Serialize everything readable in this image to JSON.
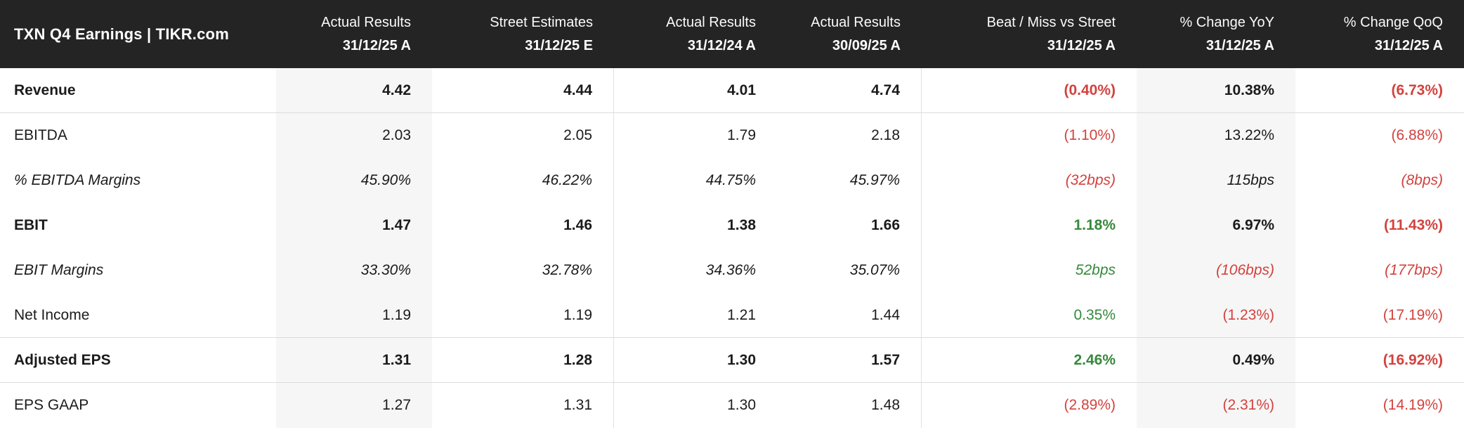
{
  "title": "TXN Q4 Earnings | TIKR.com",
  "colors": {
    "header_bg": "#242424",
    "header_text": "#ffffff",
    "body_text": "#1b1b1b",
    "negative_red": "#d2423e",
    "positive_green": "#36893c",
    "shaded_column_bg": "#f6f6f6",
    "separator": "#dcdcdc"
  },
  "chart_data": {
    "type": "table",
    "title": "TXN Q4 Earnings | TIKR.com",
    "columns": [
      {
        "label": "Actual Results",
        "date": "31/12/25 A"
      },
      {
        "label": "Street Estimates",
        "date": "31/12/25 E"
      },
      {
        "label": "Actual Results",
        "date": "31/12/24 A"
      },
      {
        "label": "Actual Results",
        "date": "30/09/25 A"
      },
      {
        "label": "Beat / Miss vs Street",
        "date": "31/12/25 A"
      },
      {
        "label": "% Change YoY",
        "date": "31/12/25 A"
      },
      {
        "label": "% Change QoQ",
        "date": "31/12/25 A"
      }
    ],
    "rows": [
      {
        "label": "Revenue",
        "style": "bold",
        "separator_below": true,
        "values": [
          {
            "text": "4.42",
            "color": "black"
          },
          {
            "text": "4.44",
            "color": "black"
          },
          {
            "text": "4.01",
            "color": "black"
          },
          {
            "text": "4.74",
            "color": "black"
          },
          {
            "text": "(0.40%)",
            "color": "red"
          },
          {
            "text": "10.38%",
            "color": "black"
          },
          {
            "text": "(6.73%)",
            "color": "red"
          }
        ]
      },
      {
        "label": "EBITDA",
        "style": "normal",
        "separator_below": false,
        "values": [
          {
            "text": "2.03",
            "color": "black"
          },
          {
            "text": "2.05",
            "color": "black"
          },
          {
            "text": "1.79",
            "color": "black"
          },
          {
            "text": "2.18",
            "color": "black"
          },
          {
            "text": "(1.10%)",
            "color": "red"
          },
          {
            "text": "13.22%",
            "color": "black"
          },
          {
            "text": "(6.88%)",
            "color": "red"
          }
        ]
      },
      {
        "label": "% EBITDA Margins",
        "style": "italic",
        "separator_below": false,
        "values": [
          {
            "text": "45.90%",
            "color": "black"
          },
          {
            "text": "46.22%",
            "color": "black"
          },
          {
            "text": "44.75%",
            "color": "black"
          },
          {
            "text": "45.97%",
            "color": "black"
          },
          {
            "text": "(32bps)",
            "color": "red"
          },
          {
            "text": "115bps",
            "color": "black"
          },
          {
            "text": "(8bps)",
            "color": "red"
          }
        ]
      },
      {
        "label": "EBIT",
        "style": "bold",
        "separator_below": false,
        "values": [
          {
            "text": "1.47",
            "color": "black"
          },
          {
            "text": "1.46",
            "color": "black"
          },
          {
            "text": "1.38",
            "color": "black"
          },
          {
            "text": "1.66",
            "color": "black"
          },
          {
            "text": "1.18%",
            "color": "green"
          },
          {
            "text": "6.97%",
            "color": "black"
          },
          {
            "text": "(11.43%)",
            "color": "red"
          }
        ]
      },
      {
        "label": "EBIT Margins",
        "style": "italic",
        "separator_below": false,
        "values": [
          {
            "text": "33.30%",
            "color": "black"
          },
          {
            "text": "32.78%",
            "color": "black"
          },
          {
            "text": "34.36%",
            "color": "black"
          },
          {
            "text": "35.07%",
            "color": "black"
          },
          {
            "text": "52bps",
            "color": "green"
          },
          {
            "text": "(106bps)",
            "color": "red"
          },
          {
            "text": "(177bps)",
            "color": "red"
          }
        ]
      },
      {
        "label": "Net Income",
        "style": "normal",
        "separator_below": true,
        "values": [
          {
            "text": "1.19",
            "color": "black"
          },
          {
            "text": "1.19",
            "color": "black"
          },
          {
            "text": "1.21",
            "color": "black"
          },
          {
            "text": "1.44",
            "color": "black"
          },
          {
            "text": "0.35%",
            "color": "green"
          },
          {
            "text": "(1.23%)",
            "color": "red"
          },
          {
            "text": "(17.19%)",
            "color": "red"
          }
        ]
      },
      {
        "label": "Adjusted EPS",
        "style": "bold",
        "separator_below": true,
        "values": [
          {
            "text": "1.31",
            "color": "black"
          },
          {
            "text": "1.28",
            "color": "black"
          },
          {
            "text": "1.30",
            "color": "black"
          },
          {
            "text": "1.57",
            "color": "black"
          },
          {
            "text": "2.46%",
            "color": "green"
          },
          {
            "text": "0.49%",
            "color": "black"
          },
          {
            "text": "(16.92%)",
            "color": "red"
          }
        ]
      },
      {
        "label": "EPS GAAP",
        "style": "normal",
        "separator_below": false,
        "values": [
          {
            "text": "1.27",
            "color": "black"
          },
          {
            "text": "1.31",
            "color": "black"
          },
          {
            "text": "1.30",
            "color": "black"
          },
          {
            "text": "1.48",
            "color": "black"
          },
          {
            "text": "(2.89%)",
            "color": "red"
          },
          {
            "text": "(2.31%)",
            "color": "red"
          },
          {
            "text": "(14.19%)",
            "color": "red"
          }
        ]
      }
    ]
  }
}
